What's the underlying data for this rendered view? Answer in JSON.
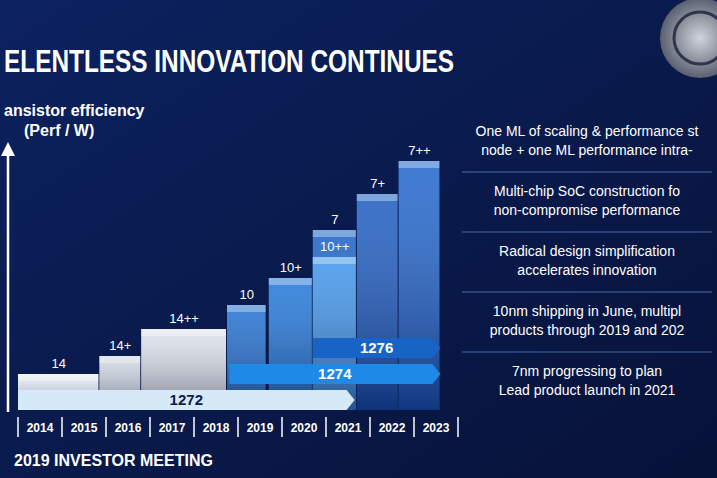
{
  "chart_data": {
    "type": "bar",
    "title": "ELENTLESS INNOVATION CONTINUES",
    "y_label": [
      "ansistor efficiency",
      "(Perf / W)"
    ],
    "categories": [
      "2014",
      "2015",
      "2016",
      "2017",
      "2018",
      "2019",
      "2020",
      "2021",
      "2022",
      "2023"
    ],
    "xlim": [
      2014,
      2024
    ],
    "ylim": [
      0,
      100
    ],
    "tick_labels": "x",
    "grid": false,
    "data_labels": true,
    "nodes": {
      "labels": [
        "14",
        "14+",
        "14++",
        "10",
        "10+",
        "7",
        "10++",
        "7+",
        "7++"
      ],
      "start": [
        2014,
        2015.85,
        2016.8,
        2018.75,
        2019.7,
        2020.7,
        2020.7,
        2021.7,
        2022.65
      ],
      "end": [
        2015.85,
        2016.8,
        2018.75,
        2019.65,
        2020.7,
        2021.7,
        2021.7,
        2022.65,
        2023.6
      ],
      "values": [
        12,
        18,
        27,
        35,
        44,
        60,
        51,
        72,
        83
      ],
      "colors": [
        "#e4edf7",
        "#cfd8e2",
        "#dde3ea",
        "#1f6fd0",
        "#1f77d8",
        "#1a5fc4",
        "#3f95ea",
        "#1a5ac0",
        "#1e64cc"
      ]
    },
    "products": {
      "labels": [
        "1272",
        "1274",
        "1276"
      ],
      "start": [
        2014,
        2018.8,
        2020.7
      ],
      "end": [
        2021.65,
        2023.6,
        2023.6
      ],
      "colors": [
        "#d6e9f8",
        "#1e8ae6",
        "#1763c6"
      ]
    },
    "notes": [
      [
        "One ML of scaling & performance st",
        "node + one ML performance intra-"
      ],
      [
        "Multi-chip SoC construction fo",
        "non-compromise performance"
      ],
      [
        "Radical design simplification",
        "accelerates innovation"
      ],
      [
        "10nm shipping in June, multipl",
        "products through 2019 and 202"
      ],
      [
        "7nm progressing to plan",
        "Lead product launch in 2021"
      ]
    ],
    "footer": "2019 INVESTOR MEETING"
  }
}
